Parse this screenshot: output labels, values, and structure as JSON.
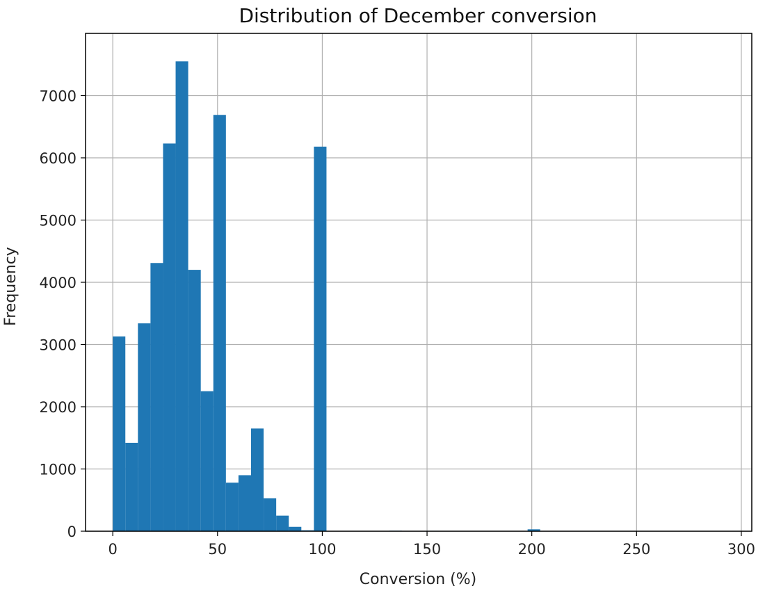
{
  "chart_data": {
    "type": "bar",
    "title": "Distribution of December conversion",
    "xlabel": "Conversion (%)",
    "ylabel": "Frequency",
    "xlim": [
      -13,
      305
    ],
    "ylim": [
      0,
      8000
    ],
    "xticks": [
      0,
      50,
      100,
      150,
      200,
      250,
      300
    ],
    "yticks": [
      0,
      1000,
      2000,
      3000,
      4000,
      5000,
      6000,
      7000
    ],
    "grid": true,
    "bin_width": 6,
    "bins": [
      {
        "x0": 0,
        "x1": 6,
        "count": 3130
      },
      {
        "x0": 6,
        "x1": 12,
        "count": 1420
      },
      {
        "x0": 12,
        "x1": 18,
        "count": 3340
      },
      {
        "x0": 18,
        "x1": 24,
        "count": 4310
      },
      {
        "x0": 24,
        "x1": 30,
        "count": 6230
      },
      {
        "x0": 30,
        "x1": 36,
        "count": 7550
      },
      {
        "x0": 36,
        "x1": 42,
        "count": 4200
      },
      {
        "x0": 42,
        "x1": 48,
        "count": 2250
      },
      {
        "x0": 48,
        "x1": 54,
        "count": 6690
      },
      {
        "x0": 54,
        "x1": 60,
        "count": 780
      },
      {
        "x0": 60,
        "x1": 66,
        "count": 900
      },
      {
        "x0": 66,
        "x1": 72,
        "count": 1650
      },
      {
        "x0": 72,
        "x1": 78,
        "count": 530
      },
      {
        "x0": 78,
        "x1": 84,
        "count": 250
      },
      {
        "x0": 84,
        "x1": 90,
        "count": 70
      },
      {
        "x0": 90,
        "x1": 96,
        "count": 15
      },
      {
        "x0": 96,
        "x1": 102,
        "count": 6180
      },
      {
        "x0": 102,
        "x1": 108,
        "count": 5
      },
      {
        "x0": 132,
        "x1": 138,
        "count": 8
      },
      {
        "x0": 150,
        "x1": 156,
        "count": 6
      },
      {
        "x0": 198,
        "x1": 204,
        "count": 30
      }
    ],
    "bar_color": "#1f77b4",
    "grid_color": "#b0b0b0"
  }
}
